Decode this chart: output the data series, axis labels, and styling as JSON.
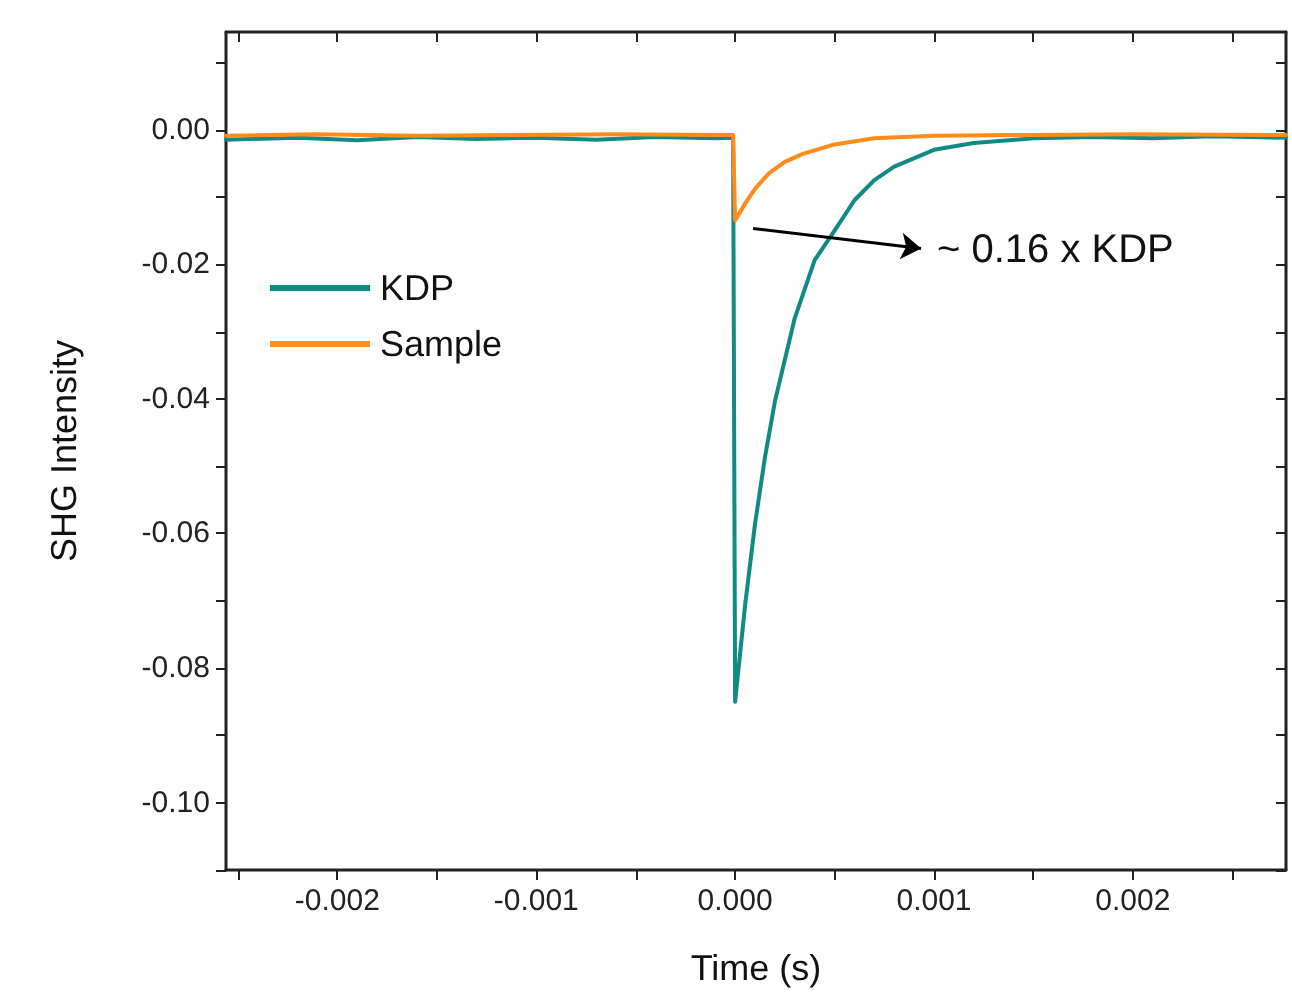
{
  "chart_data": {
    "type": "line",
    "xlabel": "Time (s)",
    "ylabel": "SHG Intensity",
    "xlim": [
      -0.00256,
      0.00277
    ],
    "ylim": [
      -0.11,
      0.0145
    ],
    "xticks": [
      {
        "value": -0.0025,
        "label": null
      },
      {
        "value": -0.002,
        "label": "-0.002"
      },
      {
        "value": -0.0015,
        "label": null
      },
      {
        "value": -0.001,
        "label": "-0.001"
      },
      {
        "value": -0.0005,
        "label": null
      },
      {
        "value": 0,
        "label": "0.000"
      },
      {
        "value": 0.0005,
        "label": null
      },
      {
        "value": 0.001,
        "label": "0.001"
      },
      {
        "value": 0.0015,
        "label": null
      },
      {
        "value": 0.002,
        "label": "0.002"
      },
      {
        "value": 0.0025,
        "label": null
      }
    ],
    "yticks": [
      {
        "value": -0.11,
        "label": null
      },
      {
        "value": -0.1,
        "label": "-0.10"
      },
      {
        "value": -0.09,
        "label": null
      },
      {
        "value": -0.08,
        "label": "-0.08"
      },
      {
        "value": -0.07,
        "label": null
      },
      {
        "value": -0.06,
        "label": "-0.06"
      },
      {
        "value": -0.05,
        "label": null
      },
      {
        "value": -0.04,
        "label": "-0.04"
      },
      {
        "value": -0.03,
        "label": null
      },
      {
        "value": -0.02,
        "label": "-0.02"
      },
      {
        "value": -0.01,
        "label": null
      },
      {
        "value": 0,
        "label": "0.00"
      },
      {
        "value": 0.01,
        "label": null
      }
    ],
    "series": [
      {
        "name": "KDP",
        "color": "#108a84",
        "x": [
          -0.00256,
          -0.0022,
          -0.0019,
          -0.0016,
          -0.0013,
          -0.001,
          -0.0007,
          -0.0004,
          -0.0001,
          -1e-05,
          0,
          5e-05,
          0.0001,
          0.00015,
          0.0002,
          0.0003,
          0.0004,
          0.0005,
          0.0006,
          0.0007,
          0.0008,
          0.001,
          0.0012,
          0.0015,
          0.0018,
          0.0021,
          0.0024,
          0.00277
        ],
        "values": [
          -0.0015,
          -0.0012,
          -0.0016,
          -0.0011,
          -0.0014,
          -0.0012,
          -0.0015,
          -0.0011,
          -0.0013,
          -0.0012,
          -0.085,
          -0.0707,
          -0.0586,
          -0.0487,
          -0.0404,
          -0.028,
          -0.0194,
          -0.015,
          -0.0105,
          -0.0075,
          -0.0055,
          -0.003,
          -0.002,
          -0.0013,
          -0.0011,
          -0.0013,
          -0.001,
          -0.0012
        ]
      },
      {
        "name": "Sample",
        "color": "#ff8c1a",
        "x": [
          -0.00256,
          -0.0021,
          -0.0016,
          -0.0011,
          -0.0006,
          -0.0001,
          -1e-05,
          0,
          5e-05,
          0.0001,
          0.00017,
          0.00025,
          0.00034,
          0.0005,
          0.0007,
          0.001,
          0.0015,
          0.002,
          0.00277
        ],
        "values": [
          -0.0009,
          -0.0007,
          -0.0009,
          -0.0008,
          -0.0007,
          -0.0008,
          -0.0008,
          -0.0135,
          -0.011,
          -0.0088,
          -0.0065,
          -0.0048,
          -0.0036,
          -0.0022,
          -0.0013,
          -0.0009,
          -0.0008,
          -0.0007,
          -0.0008
        ]
      }
    ],
    "annotations": [
      {
        "text": "~ 0.16 x KDP",
        "x": 3e-05,
        "y": -0.0135
      }
    ],
    "legend": "top left",
    "grid": false,
    "marker": "none",
    "line_style": "solid"
  }
}
